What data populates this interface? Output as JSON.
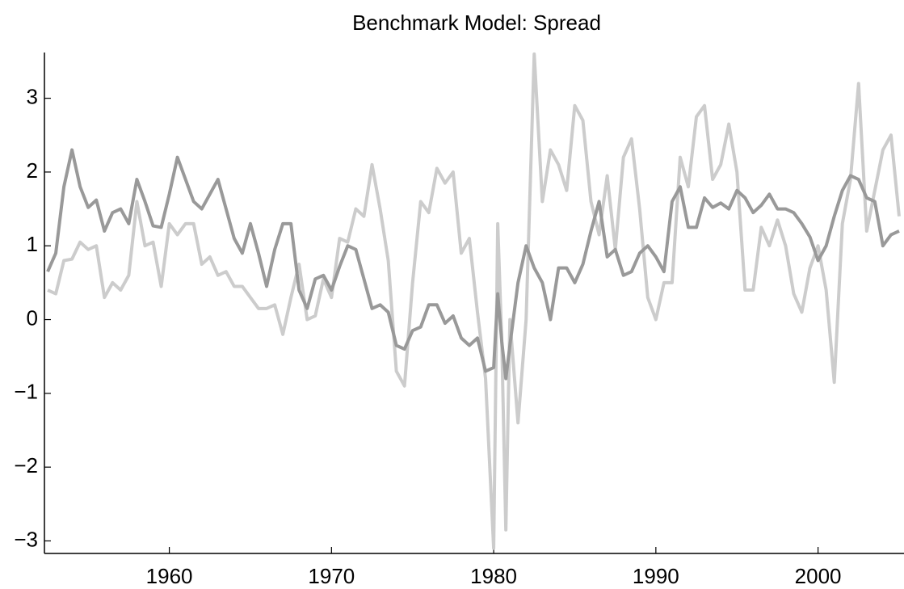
{
  "chart_data": {
    "type": "line",
    "title": "Benchmark Model: Spread",
    "x": [
      1952.5,
      1953,
      1953.5,
      1954,
      1954.5,
      1955,
      1955.5,
      1956,
      1956.5,
      1957,
      1957.5,
      1958,
      1958.5,
      1959,
      1959.5,
      1960,
      1960.5,
      1961,
      1961.5,
      1962,
      1962.5,
      1963,
      1963.5,
      1964,
      1964.5,
      1965,
      1965.5,
      1966,
      1966.5,
      1967,
      1967.5,
      1968,
      1968.5,
      1969,
      1969.5,
      1970,
      1970.5,
      1971,
      1971.5,
      1972,
      1972.5,
      1973,
      1973.5,
      1974,
      1974.5,
      1975,
      1975.5,
      1976,
      1976.5,
      1977,
      1977.5,
      1978,
      1978.5,
      1979,
      1979.5,
      1980,
      1980.25,
      1980.5,
      1980.75,
      1981,
      1981.5,
      1982,
      1982.5,
      1983,
      1983.5,
      1984,
      1984.5,
      1985,
      1985.5,
      1986,
      1986.5,
      1987,
      1987.5,
      1988,
      1988.5,
      1989,
      1989.5,
      1990,
      1990.5,
      1991,
      1991.5,
      1992,
      1992.5,
      1993,
      1993.5,
      1994,
      1994.5,
      1995,
      1995.5,
      1996,
      1996.5,
      1997,
      1997.5,
      1998,
      1998.5,
      1999,
      1999.5,
      2000,
      2000.5,
      2001,
      2001.5,
      2002,
      2002.5,
      2003,
      2003.5,
      2004,
      2004.5,
      2005
    ],
    "series": [
      {
        "color": "#cccccc",
        "values": [
          0.4,
          0.35,
          0.8,
          0.82,
          1.05,
          0.95,
          1.0,
          0.3,
          0.5,
          0.4,
          0.6,
          1.6,
          1.0,
          1.05,
          0.45,
          1.3,
          1.15,
          1.3,
          1.3,
          0.75,
          0.85,
          0.6,
          0.65,
          0.45,
          0.45,
          0.3,
          0.15,
          0.15,
          0.2,
          -0.2,
          0.3,
          0.75,
          0.0,
          0.05,
          0.55,
          0.3,
          1.1,
          1.05,
          1.5,
          1.4,
          2.1,
          1.5,
          0.8,
          -0.7,
          -0.9,
          0.5,
          1.6,
          1.45,
          2.05,
          1.85,
          2.0,
          0.9,
          1.1,
          0.1,
          -0.8,
          -3.1,
          1.3,
          -0.3,
          -2.85,
          0.0,
          -1.4,
          0.0,
          3.6,
          1.6,
          2.3,
          2.1,
          1.75,
          2.9,
          2.7,
          1.6,
          1.15,
          1.95,
          0.95,
          2.2,
          2.45,
          1.5,
          0.3,
          0.0,
          0.5,
          0.5,
          2.2,
          1.8,
          2.75,
          2.9,
          1.9,
          2.1,
          2.65,
          2.0,
          0.4,
          0.4,
          1.25,
          1.0,
          1.35,
          1.0,
          0.35,
          0.1,
          0.7,
          1.0,
          0.4,
          -0.85,
          1.3,
          1.9,
          3.2,
          1.2,
          1.75,
          2.3,
          2.5,
          1.4
        ]
      },
      {
        "color": "#999999",
        "values": [
          0.65,
          0.9,
          1.8,
          2.3,
          1.8,
          1.52,
          1.62,
          1.2,
          1.45,
          1.5,
          1.3,
          1.9,
          1.6,
          1.27,
          1.25,
          1.7,
          2.2,
          1.9,
          1.6,
          1.5,
          1.7,
          1.9,
          1.5,
          1.1,
          0.9,
          1.3,
          0.9,
          0.45,
          0.95,
          1.3,
          1.3,
          0.4,
          0.15,
          0.55,
          0.6,
          0.4,
          0.72,
          1.0,
          0.95,
          0.55,
          0.15,
          0.2,
          0.1,
          -0.35,
          -0.4,
          -0.15,
          -0.1,
          0.2,
          0.2,
          -0.05,
          0.05,
          -0.25,
          -0.35,
          -0.25,
          -0.7,
          -0.65,
          0.35,
          -0.3,
          -0.8,
          -0.35,
          0.5,
          1.0,
          0.7,
          0.5,
          0.0,
          0.7,
          0.7,
          0.5,
          0.75,
          1.2,
          1.6,
          0.85,
          0.95,
          0.6,
          0.65,
          0.9,
          1.0,
          0.85,
          0.65,
          1.6,
          1.8,
          1.25,
          1.25,
          1.65,
          1.52,
          1.58,
          1.5,
          1.75,
          1.65,
          1.45,
          1.55,
          1.7,
          1.5,
          1.5,
          1.45,
          1.3,
          1.12,
          0.8,
          1.0,
          1.4,
          1.75,
          1.95,
          1.9,
          1.65,
          1.6,
          1.0,
          1.15,
          1.2
        ]
      }
    ],
    "xlim": [
      1952.3,
      2005.3
    ],
    "xticks": [
      1960,
      1970,
      1980,
      1990,
      2000
    ],
    "ylim": [
      -3.17,
      3.62
    ],
    "yticks": [
      {
        "value": -3,
        "label": "−3"
      },
      {
        "value": -2,
        "label": "−2"
      },
      {
        "value": -1,
        "label": "−1"
      },
      0,
      1,
      2,
      3
    ]
  }
}
